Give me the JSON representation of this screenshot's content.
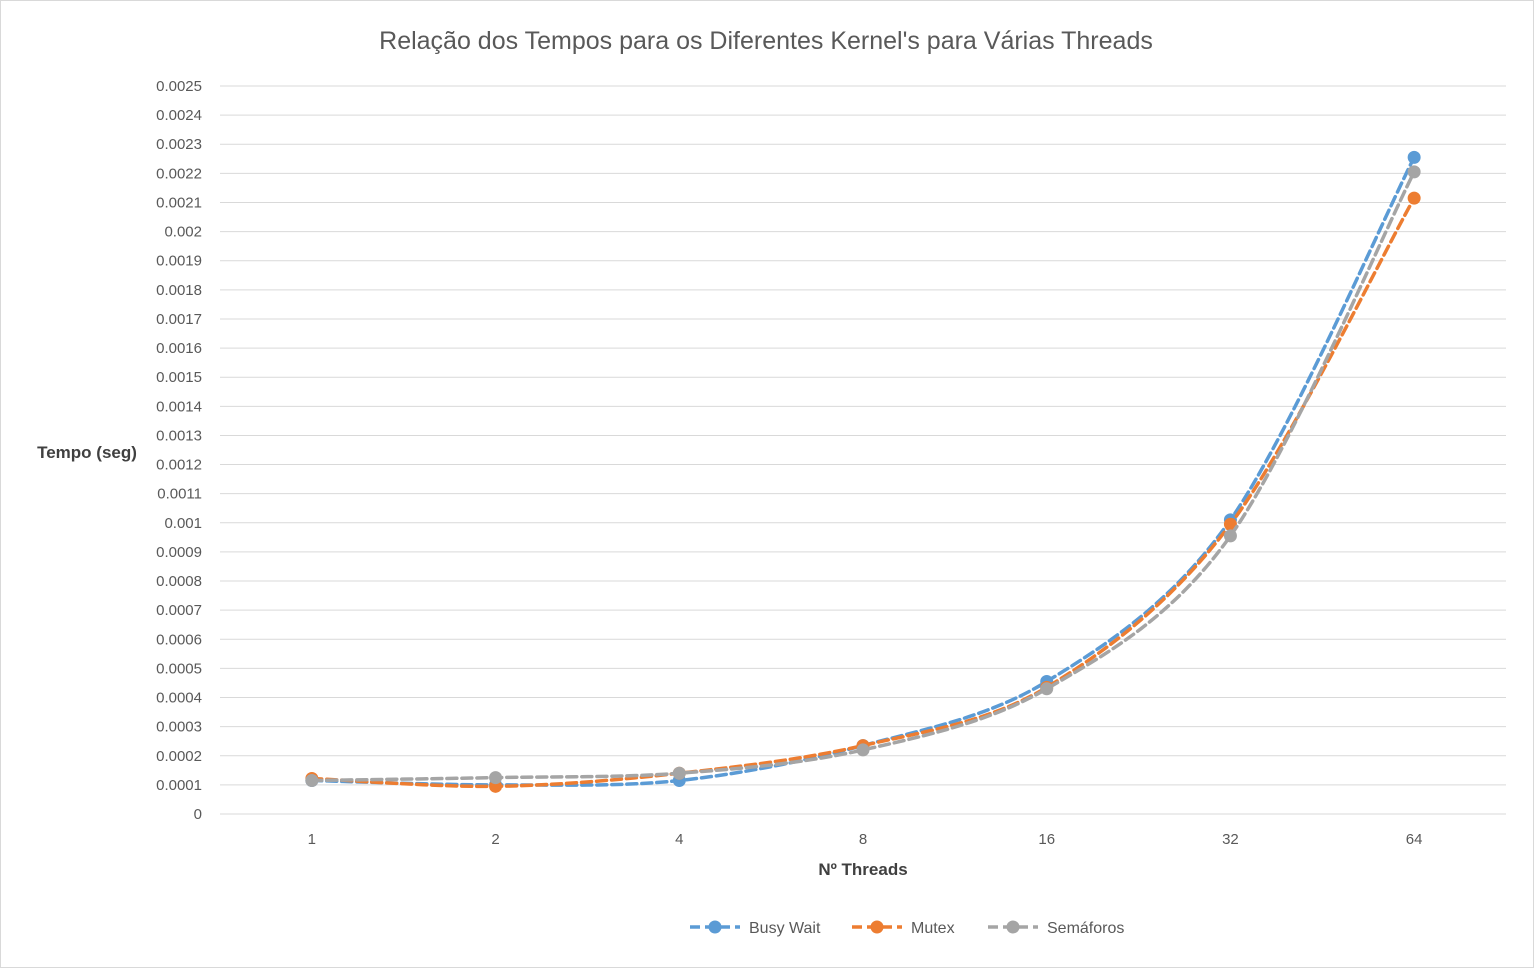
{
  "chart_data": {
    "type": "line",
    "title": "Relação dos Tempos para os Diferentes Kernel's para Várias Threads",
    "xlabel": "Nº Threads",
    "ylabel": "Tempo (seg)",
    "categories": [
      "1",
      "2",
      "4",
      "8",
      "16",
      "32",
      "64"
    ],
    "ylim": [
      0,
      0.0025
    ],
    "ytick_step": 0.0001,
    "yticks": [
      "0",
      "0.0001",
      "0.0002",
      "0.0003",
      "0.0004",
      "0.0005",
      "0.0006",
      "0.0007",
      "0.0008",
      "0.0009",
      "0.001",
      "0.0011",
      "0.0012",
      "0.0013",
      "0.0014",
      "0.0015",
      "0.0016",
      "0.0017",
      "0.0018",
      "0.0019",
      "0.002",
      "0.0021",
      "0.0022",
      "0.0023",
      "0.0024",
      "0.0025"
    ],
    "grid": true,
    "legend_position": "bottom",
    "line_style": "dashed",
    "series": [
      {
        "name": "Busy Wait",
        "color": "#5b9bd5",
        "values": [
          0.000115,
          0.0001,
          0.000115,
          0.000235,
          0.000455,
          0.00101,
          0.002255
        ]
      },
      {
        "name": "Mutex",
        "color": "#ed7d31",
        "values": [
          0.000122,
          9.5e-05,
          0.00014,
          0.000235,
          0.000435,
          0.000995,
          0.002115
        ]
      },
      {
        "name": "Semáforos",
        "color": "#a5a5a5",
        "values": [
          0.000115,
          0.000125,
          0.00014,
          0.00022,
          0.00043,
          0.000955,
          0.002205
        ]
      }
    ]
  }
}
